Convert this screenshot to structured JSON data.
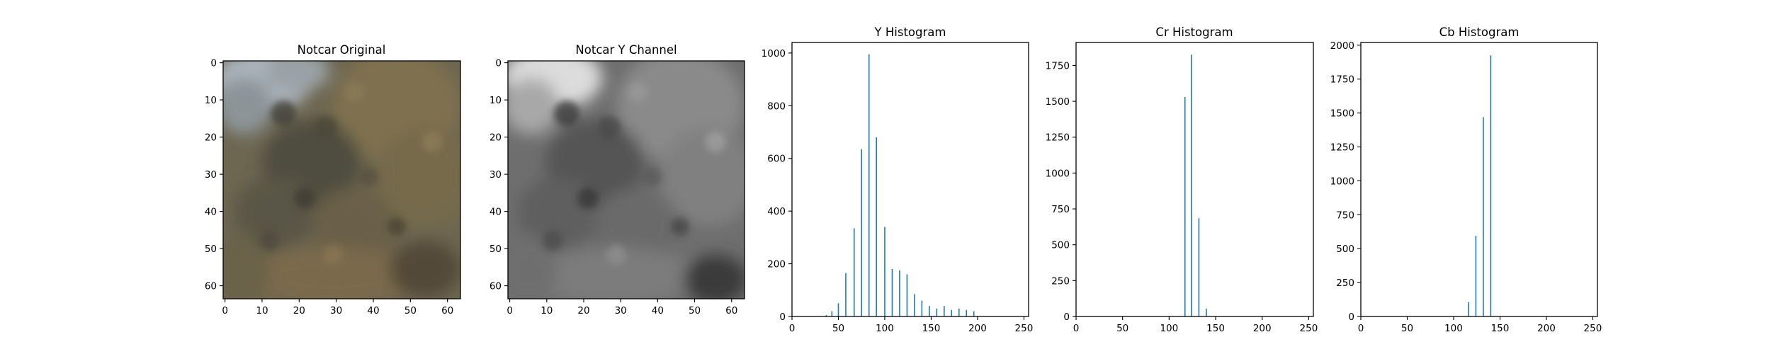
{
  "chart_data": [
    {
      "type": "image",
      "title": "Notcar Original",
      "image": "color photo of tree foliage, muted greens and browns with pale sky at top-left",
      "xlim": [
        -0.5,
        63.5
      ],
      "ylim": [
        63.5,
        -0.5
      ],
      "xticks": [
        0,
        10,
        20,
        30,
        40,
        50,
        60
      ],
      "yticks": [
        0,
        10,
        20,
        30,
        40,
        50,
        60
      ],
      "grid": false
    },
    {
      "type": "image",
      "title": "Notcar Y Channel",
      "image": "grayscale luminance of the same foliage patch, bright sky at top-left",
      "xlim": [
        -0.5,
        63.5
      ],
      "ylim": [
        63.5,
        -0.5
      ],
      "xticks": [
        0,
        10,
        20,
        30,
        40,
        50,
        60
      ],
      "yticks": [
        0,
        10,
        20,
        30,
        40,
        50,
        60
      ],
      "grid": false
    },
    {
      "type": "bar",
      "title": "Y Histogram",
      "x": [
        37,
        43,
        50,
        58,
        67,
        75,
        83,
        91,
        100,
        108,
        116,
        124,
        132,
        140,
        148,
        156,
        164,
        172,
        180,
        188,
        196
      ],
      "values": [
        5,
        20,
        50,
        165,
        335,
        635,
        995,
        680,
        340,
        180,
        175,
        160,
        85,
        60,
        40,
        30,
        40,
        25,
        30,
        25,
        20
      ],
      "xlim": [
        0,
        255
      ],
      "ylim": [
        0,
        1040
      ],
      "xticks": [
        0,
        50,
        100,
        150,
        200,
        250
      ],
      "yticks": [
        0,
        200,
        400,
        600,
        800,
        1000
      ],
      "color": "#1f77b4",
      "grid": false
    },
    {
      "type": "bar",
      "title": "Cr Histogram",
      "x": [
        117,
        124,
        132,
        140
      ],
      "values": [
        1530,
        1825,
        685,
        55
      ],
      "xlim": [
        0,
        255
      ],
      "ylim": [
        0,
        1910
      ],
      "xticks": [
        0,
        50,
        100,
        150,
        200,
        250
      ],
      "yticks": [
        0,
        250,
        500,
        750,
        1000,
        1250,
        1500,
        1750
      ],
      "color": "#1f77b4",
      "grid": false
    },
    {
      "type": "bar",
      "title": "Cb Histogram",
      "x": [
        116,
        124,
        132,
        140
      ],
      "values": [
        105,
        595,
        1470,
        1925
      ],
      "xlim": [
        0,
        255
      ],
      "ylim": [
        0,
        2020
      ],
      "xticks": [
        0,
        50,
        100,
        150,
        200,
        250
      ],
      "yticks": [
        0,
        250,
        500,
        750,
        1000,
        1250,
        1500,
        1750,
        2000
      ],
      "color": "#1f77b4",
      "grid": false
    }
  ]
}
